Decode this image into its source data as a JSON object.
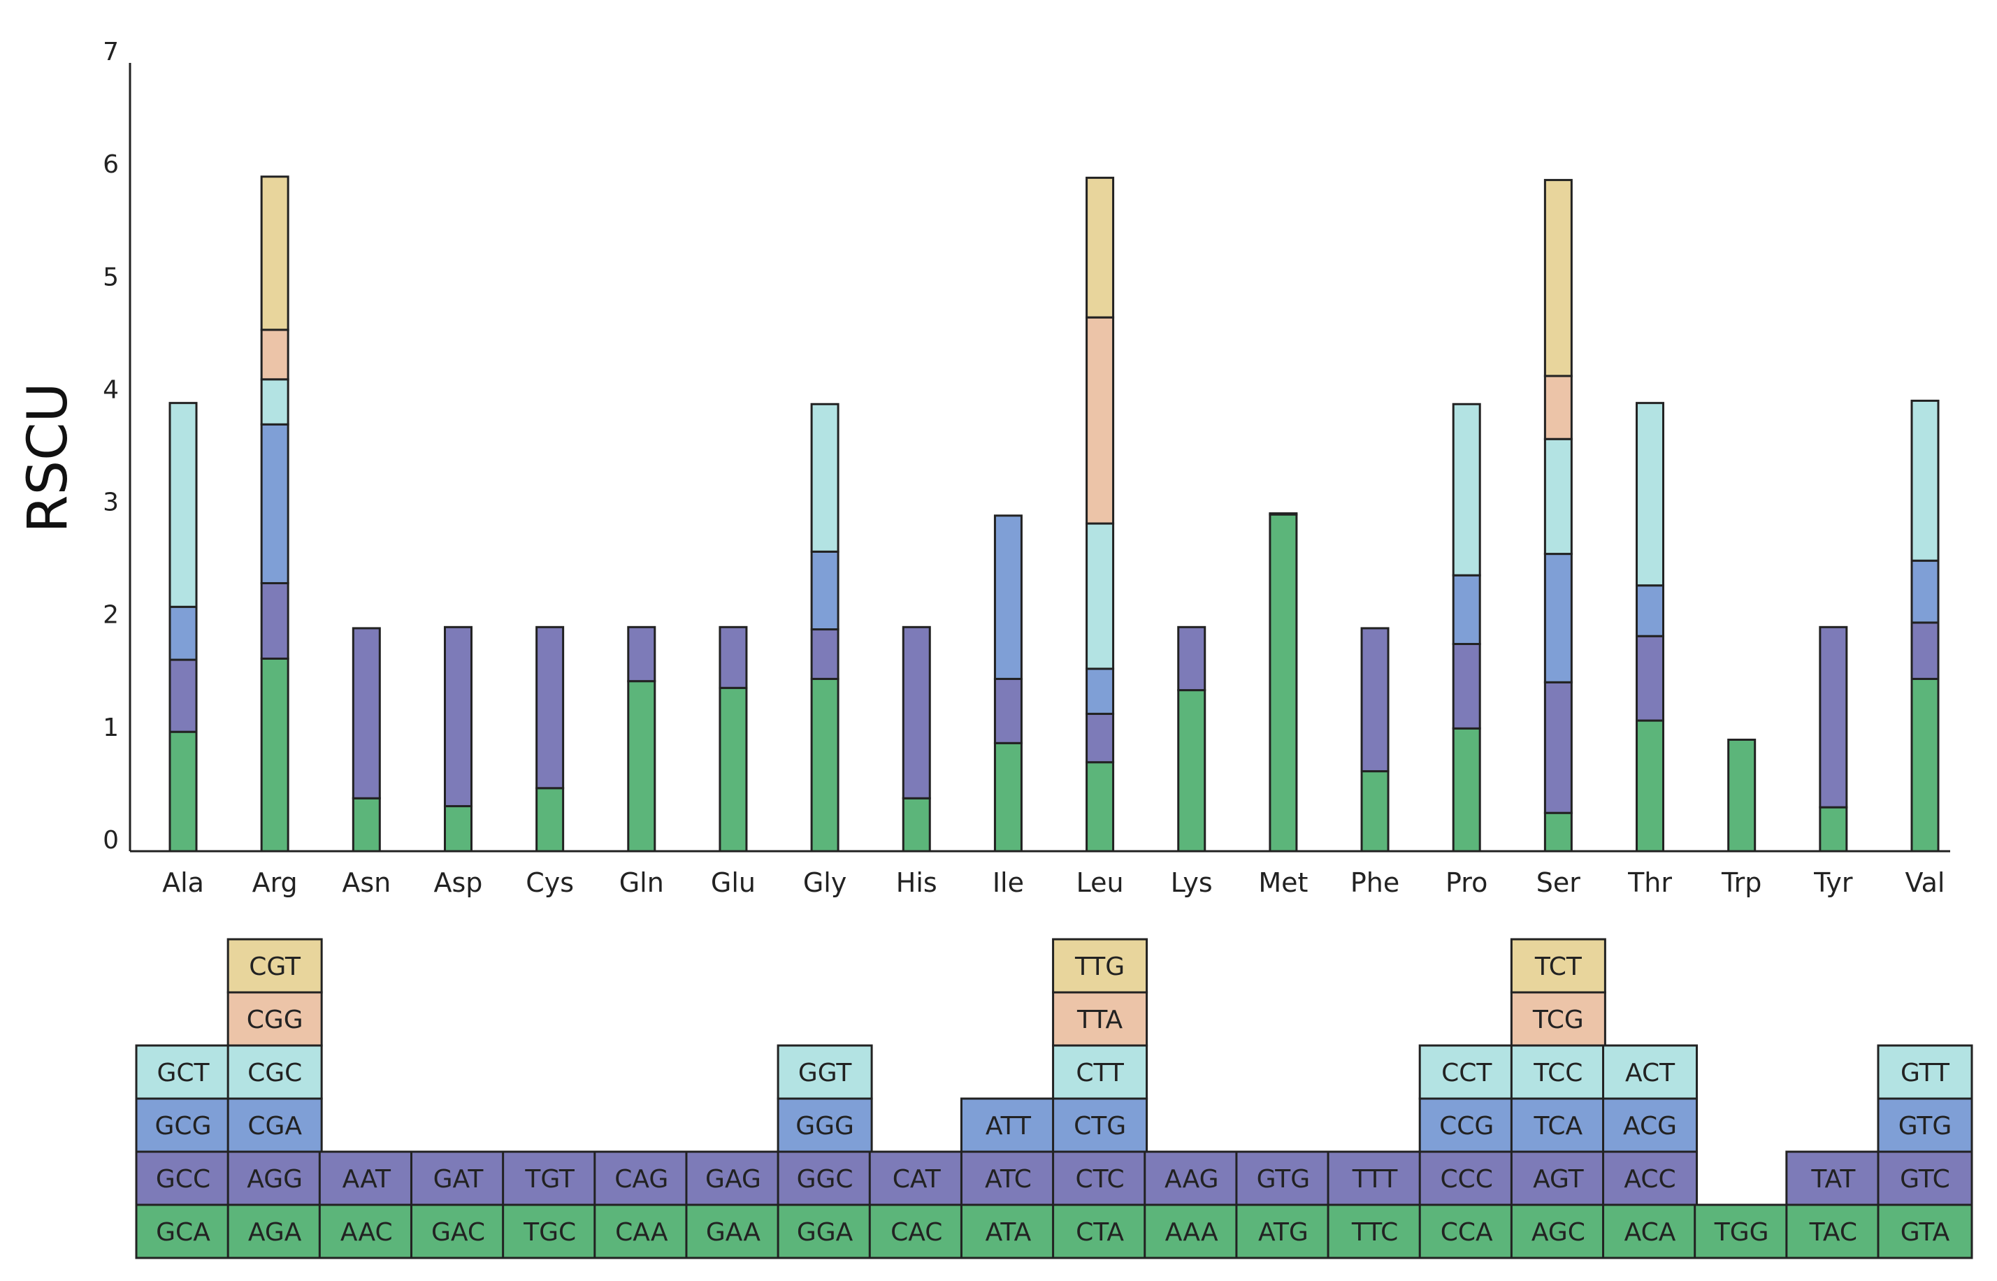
{
  "chart_data": {
    "type": "bar",
    "stacked": true,
    "ylabel": "RSCU",
    "xlabel": "",
    "ylim": [
      0,
      7
    ],
    "yticks": [
      "0",
      "1",
      "2",
      "3",
      "4",
      "5",
      "6",
      "7"
    ],
    "grid": false,
    "legend": "codon table below chart",
    "layer_colors": [
      "#5cb57a",
      "#7d7bb8",
      "#7f9fd6",
      "#b3e3e3",
      "#ecc4a8",
      "#e8d59c"
    ],
    "categories": [
      "Ala",
      "Arg",
      "Asn",
      "Asp",
      "Cys",
      "Gln",
      "Glu",
      "Gly",
      "His",
      "Ile",
      "Leu",
      "Lys",
      "Met",
      "Phe",
      "Pro",
      "Ser",
      "Thr",
      "Trp",
      "Tyr",
      "Val"
    ],
    "segments": [
      [
        {
          "codon": "GCA",
          "value": 1.06
        },
        {
          "codon": "GCC",
          "value": 0.64
        },
        {
          "codon": "GCG",
          "value": 0.47
        },
        {
          "codon": "GCT",
          "value": 1.81
        }
      ],
      [
        {
          "codon": "AGA",
          "value": 1.71
        },
        {
          "codon": "AGG",
          "value": 0.67
        },
        {
          "codon": "CGA",
          "value": 1.41
        },
        {
          "codon": "CGC",
          "value": 0.4
        },
        {
          "codon": "CGG",
          "value": 0.44
        },
        {
          "codon": "CGT",
          "value": 1.36
        }
      ],
      [
        {
          "codon": "AAC",
          "value": 0.47
        },
        {
          "codon": "AAT",
          "value": 1.51
        }
      ],
      [
        {
          "codon": "GAC",
          "value": 0.4
        },
        {
          "codon": "GAT",
          "value": 1.59
        }
      ],
      [
        {
          "codon": "TGC",
          "value": 0.56
        },
        {
          "codon": "TGT",
          "value": 1.43
        }
      ],
      [
        {
          "codon": "CAA",
          "value": 1.51
        },
        {
          "codon": "CAG",
          "value": 0.48
        }
      ],
      [
        {
          "codon": "GAA",
          "value": 1.45
        },
        {
          "codon": "GAG",
          "value": 0.54
        }
      ],
      [
        {
          "codon": "GGA",
          "value": 1.53
        },
        {
          "codon": "GGC",
          "value": 0.44
        },
        {
          "codon": "GGG",
          "value": 0.69
        },
        {
          "codon": "GGT",
          "value": 1.31
        }
      ],
      [
        {
          "codon": "CAC",
          "value": 0.47
        },
        {
          "codon": "CAT",
          "value": 1.52
        }
      ],
      [
        {
          "codon": "ATA",
          "value": 0.96
        },
        {
          "codon": "ATC",
          "value": 0.57
        },
        {
          "codon": "ATT",
          "value": 1.45
        }
      ],
      [
        {
          "codon": "CTA",
          "value": 0.79
        },
        {
          "codon": "CTC",
          "value": 0.43
        },
        {
          "codon": "CTG",
          "value": 0.4
        },
        {
          "codon": "CTT",
          "value": 1.29
        },
        {
          "codon": "TTA",
          "value": 1.83
        },
        {
          "codon": "TTG",
          "value": 1.24
        }
      ],
      [
        {
          "codon": "AAA",
          "value": 1.43
        },
        {
          "codon": "AAG",
          "value": 0.56
        }
      ],
      [
        {
          "codon": "ATG",
          "value": 2.99
        },
        {
          "codon": "GTG",
          "value": 0.01
        }
      ],
      [
        {
          "codon": "TTC",
          "value": 0.71
        },
        {
          "codon": "TTT",
          "value": 1.27
        }
      ],
      [
        {
          "codon": "CCA",
          "value": 1.09
        },
        {
          "codon": "CCC",
          "value": 0.75
        },
        {
          "codon": "CCG",
          "value": 0.61
        },
        {
          "codon": "CCT",
          "value": 1.52
        }
      ],
      [
        {
          "codon": "AGC",
          "value": 0.34
        },
        {
          "codon": "AGT",
          "value": 1.16
        },
        {
          "codon": "TCA",
          "value": 1.14
        },
        {
          "codon": "TCC",
          "value": 1.02
        },
        {
          "codon": "TCG",
          "value": 0.56
        },
        {
          "codon": "TCT",
          "value": 1.74
        }
      ],
      [
        {
          "codon": "ACA",
          "value": 1.16
        },
        {
          "codon": "ACC",
          "value": 0.75
        },
        {
          "codon": "ACG",
          "value": 0.45
        },
        {
          "codon": "ACT",
          "value": 1.62
        }
      ],
      [
        {
          "codon": "TGG",
          "value": 0.99
        }
      ],
      [
        {
          "codon": "TAC",
          "value": 0.39
        },
        {
          "codon": "TAT",
          "value": 1.6
        }
      ],
      [
        {
          "codon": "GTA",
          "value": 1.53
        },
        {
          "codon": "GTC",
          "value": 0.5
        },
        {
          "codon": "GTG",
          "value": 0.55
        },
        {
          "codon": "GTT",
          "value": 1.42
        }
      ]
    ]
  }
}
